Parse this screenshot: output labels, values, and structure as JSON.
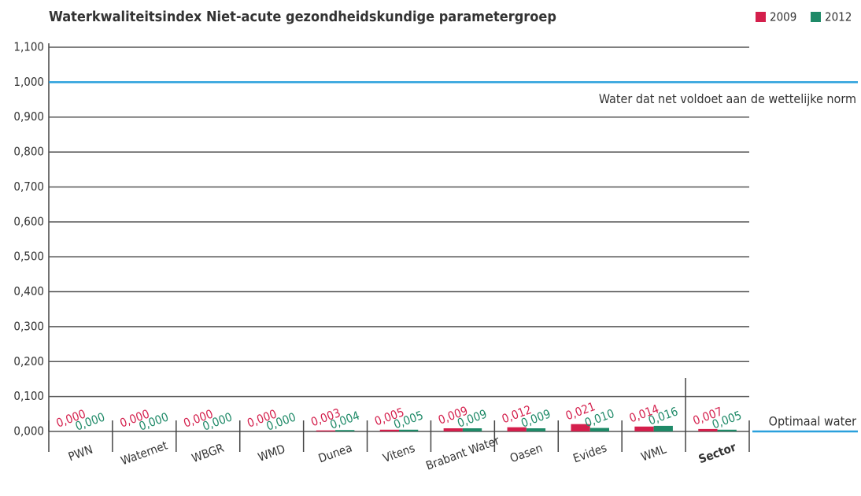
{
  "chart_data": {
    "type": "bar",
    "title": "Waterkwaliteitsindex Niet-acute gezondheidskundige parametergroep",
    "categories": [
      "PWN",
      "Waternet",
      "WBGR",
      "WMD",
      "Dunea",
      "Vitens",
      "Brabant Water",
      "Oasen",
      "Evides",
      "WML",
      "Sector"
    ],
    "series": [
      {
        "name": "2009",
        "color": "#d41f4c",
        "values": [
          0,
          0,
          0,
          0,
          0.003,
          0.005,
          0.009,
          0.012,
          0.021,
          0.014,
          0.007
        ],
        "value_labels": [
          "0,000",
          "0,000",
          "0,000",
          "0,000",
          "0,003",
          "0,005",
          "0,009",
          "0,012",
          "0,021",
          "0,014",
          "0,007"
        ]
      },
      {
        "name": "2012",
        "color": "#1f8a68",
        "values": [
          0,
          0,
          0,
          0,
          0.004,
          0.005,
          0.009,
          0.009,
          0.01,
          0.016,
          0.005
        ],
        "value_labels": [
          "0,000",
          "0,000",
          "0,000",
          "0,000",
          "0,004",
          "0,005",
          "0,009",
          "0,009",
          "0,010",
          "0,016",
          "0,005"
        ]
      }
    ],
    "ylim": [
      0,
      1.1
    ],
    "yticks": [
      {
        "value": 0,
        "label": "0,000"
      },
      {
        "value": 0.1,
        "label": "0,100"
      },
      {
        "value": 0.2,
        "label": "0,200"
      },
      {
        "value": 0.3,
        "label": "0,300"
      },
      {
        "value": 0.4,
        "label": "0,400"
      },
      {
        "value": 0.5,
        "label": "0,500"
      },
      {
        "value": 0.6,
        "label": "0,600"
      },
      {
        "value": 0.7,
        "label": "0,700"
      },
      {
        "value": 0.8,
        "label": "0,800"
      },
      {
        "value": 0.9,
        "label": "0,900"
      },
      {
        "value": 1,
        "label": "1,000"
      },
      {
        "value": 1.1,
        "label": "1,100"
      }
    ],
    "grid": true,
    "legend": "top-right",
    "reference_lines": [
      {
        "value": 1,
        "label": "Water dat net voldoet aan de wettelijke norm",
        "color": "#2aa0dc"
      },
      {
        "value": 0,
        "label": "Optimaal water",
        "color": "#2aa0dc"
      }
    ]
  }
}
